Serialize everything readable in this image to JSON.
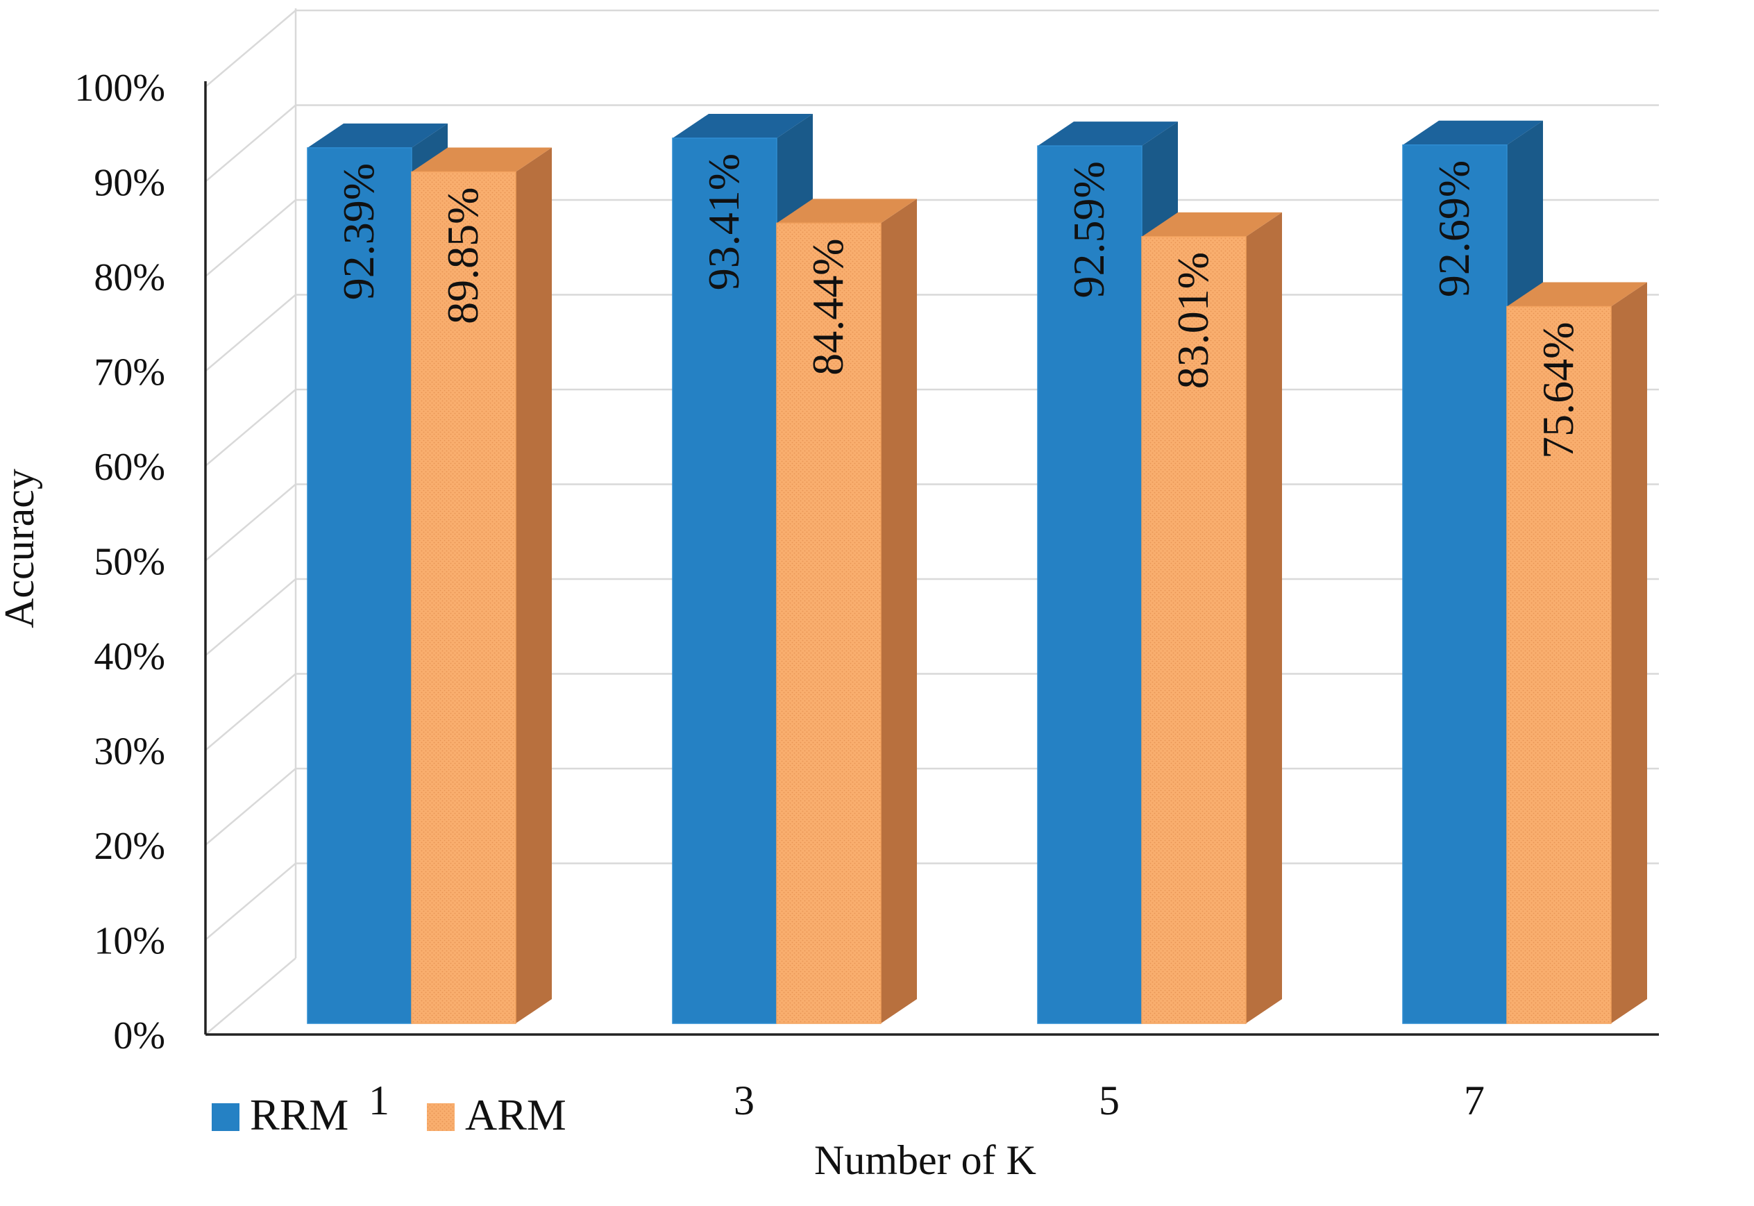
{
  "chart_data": {
    "type": "bar",
    "style": "3d-clustered-column",
    "categories": [
      "1",
      "3",
      "5",
      "7"
    ],
    "series": [
      {
        "name": "RRM",
        "values": [
          92.39,
          93.41,
          92.59,
          92.69
        ],
        "labels": [
          "92.39%",
          "93.41%",
          "92.59%",
          "92.69%"
        ],
        "color": "#2581C4",
        "side_color": "#1A5A8A",
        "top_color": "#1C639C"
      },
      {
        "name": "ARM",
        "values": [
          89.85,
          84.44,
          83.01,
          75.64
        ],
        "labels": [
          "89.85%",
          "84.44%",
          "83.01%",
          "75.64%"
        ],
        "color": "#F9AE6E",
        "side_color": "#B8703E",
        "top_color": "#DE8E4E"
      }
    ],
    "yticks": [
      "0%",
      "10%",
      "20%",
      "30%",
      "40%",
      "50%",
      "60%",
      "70%",
      "80%",
      "90%",
      "100%"
    ],
    "ylim": [
      0,
      100
    ],
    "ylabel": "Accuracy",
    "xlabel": "Number of K",
    "grid": true,
    "legend_position": "bottom-left"
  }
}
